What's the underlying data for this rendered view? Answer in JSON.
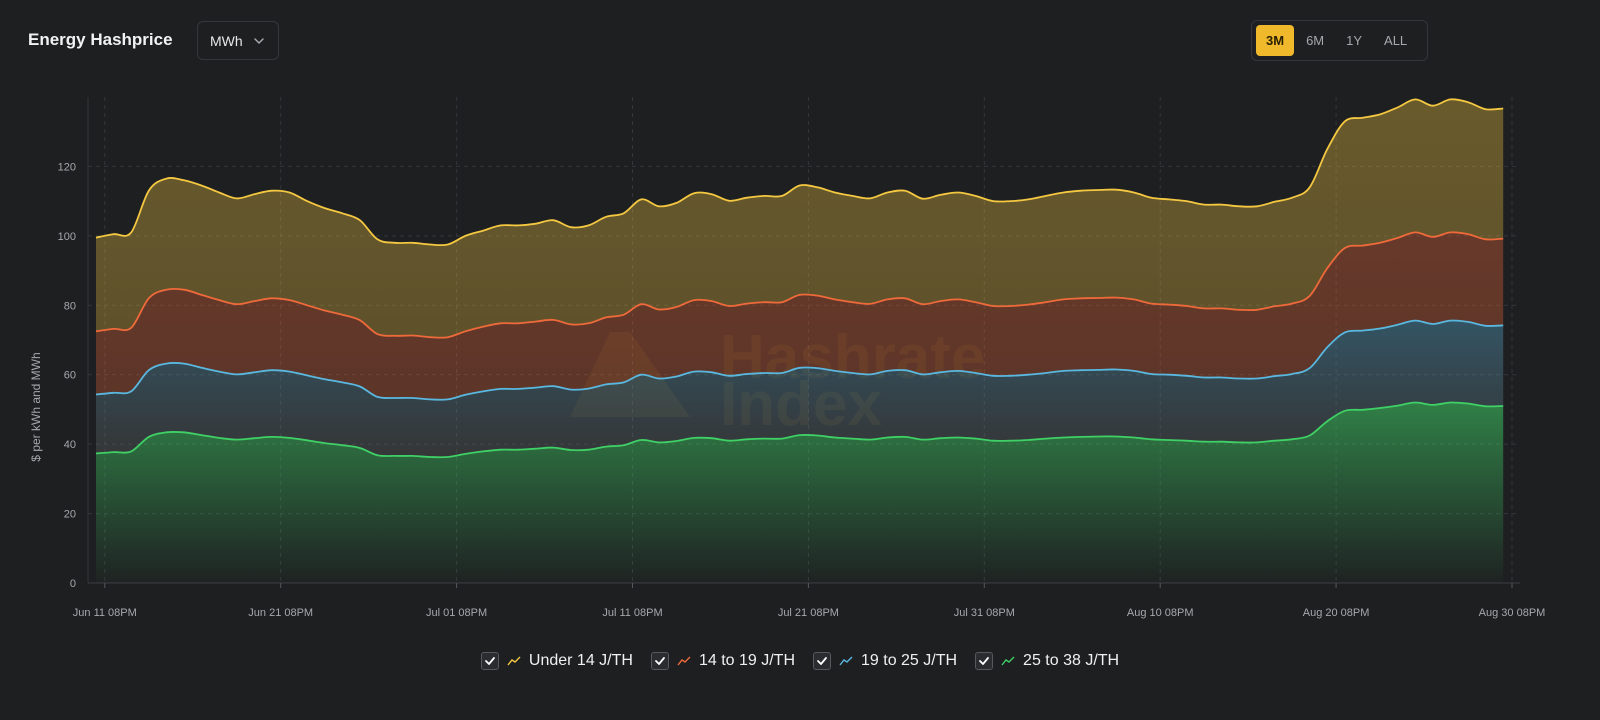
{
  "header": {
    "title": "Energy Hashprice",
    "unit_select": {
      "value": "MWh"
    },
    "ranges": [
      {
        "label": "3M",
        "active": true
      },
      {
        "label": "6M",
        "active": false
      },
      {
        "label": "1Y",
        "active": false
      },
      {
        "label": "ALL",
        "active": false
      }
    ]
  },
  "watermark": {
    "line1": "Hashrate",
    "line2": "Index"
  },
  "colors": {
    "background": "#1e1f21",
    "accent": "#f0b92b"
  },
  "chart_data": {
    "type": "area",
    "ylabel": "$ per kWh and MWh",
    "xlabel": "",
    "ylim": [
      0,
      140
    ],
    "yticks": [
      0,
      20,
      40,
      60,
      80,
      100,
      120
    ],
    "x_ticks": [
      "Jun 11 08PM",
      "Jun 21 08PM",
      "Jul 01 08PM",
      "Jul 11 08PM",
      "Jul 21 08PM",
      "Jul 31 08PM",
      "Aug 10 08PM",
      "Aug 20 08PM",
      "Aug 30 08PM"
    ],
    "x_start": "2024-06-11T08:00",
    "x_end": "2024-08-30T20:00",
    "x": [
      "2024-06-11T08:00",
      "2024-06-12T08:00",
      "2024-06-13T08:00",
      "2024-06-14T08:00",
      "2024-06-15T08:00",
      "2024-06-16T08:00",
      "2024-06-17T08:00",
      "2024-06-18T08:00",
      "2024-06-19T08:00",
      "2024-06-20T08:00",
      "2024-06-21T08:00",
      "2024-06-22T08:00",
      "2024-06-23T08:00",
      "2024-06-24T08:00",
      "2024-06-25T08:00",
      "2024-06-26T08:00",
      "2024-06-27T08:00",
      "2024-06-28T08:00",
      "2024-06-29T08:00",
      "2024-06-30T08:00",
      "2024-07-01T08:00",
      "2024-07-02T08:00",
      "2024-07-03T08:00",
      "2024-07-04T08:00",
      "2024-07-05T08:00",
      "2024-07-06T08:00",
      "2024-07-07T08:00",
      "2024-07-08T08:00",
      "2024-07-09T08:00",
      "2024-07-10T08:00",
      "2024-07-11T08:00",
      "2024-07-12T08:00",
      "2024-07-13T08:00",
      "2024-07-14T08:00",
      "2024-07-15T08:00",
      "2024-07-16T08:00",
      "2024-07-17T08:00",
      "2024-07-18T08:00",
      "2024-07-19T08:00",
      "2024-07-20T08:00",
      "2024-07-21T08:00",
      "2024-07-22T08:00",
      "2024-07-23T08:00",
      "2024-07-24T08:00",
      "2024-07-25T08:00",
      "2024-07-26T08:00",
      "2024-07-27T08:00",
      "2024-07-28T08:00",
      "2024-07-29T08:00",
      "2024-07-30T08:00",
      "2024-07-31T08:00",
      "2024-08-01T08:00",
      "2024-08-02T08:00",
      "2024-08-03T08:00",
      "2024-08-04T08:00",
      "2024-08-05T08:00",
      "2024-08-06T08:00",
      "2024-08-07T08:00",
      "2024-08-08T08:00",
      "2024-08-09T08:00",
      "2024-08-10T08:00",
      "2024-08-11T08:00",
      "2024-08-12T08:00",
      "2024-08-13T08:00",
      "2024-08-14T08:00",
      "2024-08-15T08:00",
      "2024-08-16T08:00",
      "2024-08-17T08:00",
      "2024-08-18T08:00",
      "2024-08-19T08:00",
      "2024-08-20T08:00",
      "2024-08-21T08:00",
      "2024-08-22T08:00",
      "2024-08-23T08:00",
      "2024-08-24T08:00",
      "2024-08-25T08:00",
      "2024-08-26T08:00",
      "2024-08-27T08:00",
      "2024-08-28T08:00",
      "2024-08-29T08:00",
      "2024-08-30T08:00"
    ],
    "series": [
      {
        "name": "Under 14 J/TH",
        "color": "#f5c842",
        "values": [
          99.5,
          100.5,
          101,
          113,
          116.5,
          116,
          114.5,
          112.5,
          110.8,
          112,
          113,
          112.5,
          110,
          108,
          106.5,
          104.5,
          99,
          98,
          98,
          97.5,
          97.5,
          100,
          101.5,
          103,
          103,
          103.5,
          104.5,
          102.5,
          103,
          105.5,
          106.5,
          110.5,
          108.5,
          109.5,
          112.3,
          112,
          110.1,
          111,
          111.5,
          111.5,
          114.5,
          114,
          112.5,
          111.5,
          110.8,
          112.5,
          113,
          110.7,
          111.8,
          112.5,
          111.5,
          110,
          110,
          110.5,
          111.5,
          112.5,
          113,
          113.2,
          113.3,
          112.5,
          111,
          110.5,
          110,
          109,
          109,
          108.5,
          108.5,
          109.8,
          111,
          114,
          125,
          133,
          134,
          135,
          137,
          139.3,
          137.5,
          139.3,
          138.5,
          136.5,
          136.7
        ]
      },
      {
        "name": "14 to 19 J/TH",
        "color": "#ef6a3a",
        "values": [
          72.5,
          73.2,
          73.5,
          82,
          84.5,
          84.5,
          83,
          81.5,
          80.3,
          81.2,
          82,
          81.5,
          80,
          78.5,
          77.3,
          75.7,
          71.7,
          71.2,
          71.3,
          70.8,
          70.8,
          72.5,
          73.8,
          74.8,
          74.8,
          75.3,
          75.8,
          74.5,
          74.8,
          76.5,
          77.3,
          80.3,
          78.8,
          79.5,
          81.5,
          81.2,
          79.8,
          80.5,
          80.9,
          80.9,
          83,
          82.8,
          81.7,
          80.9,
          80.4,
          81.7,
          82,
          80.3,
          81.2,
          81.7,
          80.9,
          79.8,
          79.8,
          80.2,
          80.9,
          81.7,
          82,
          82.1,
          82.2,
          81.7,
          80.5,
          80.2,
          79.8,
          79.1,
          79.1,
          78.7,
          78.7,
          79.7,
          80.5,
          82.7,
          90.7,
          96.5,
          97.2,
          98,
          99.4,
          101,
          99.7,
          101,
          100.5,
          99,
          99.2
        ]
      },
      {
        "name": "19 to 25 J/TH",
        "color": "#5ab8e0",
        "values": [
          54.3,
          54.8,
          55.2,
          61.3,
          63.2,
          63.2,
          62,
          60.9,
          60.1,
          60.7,
          61.3,
          60.9,
          59.8,
          58.7,
          57.8,
          56.6,
          53.6,
          53.3,
          53.3,
          52.9,
          52.9,
          54.2,
          55.2,
          55.9,
          55.9,
          56.3,
          56.7,
          55.7,
          56,
          57.2,
          57.8,
          60,
          58.9,
          59.5,
          60.9,
          60.7,
          59.7,
          60.2,
          60.5,
          60.5,
          62,
          61.9,
          61.1,
          60.5,
          60.1,
          61.1,
          61.3,
          60.1,
          60.7,
          61.1,
          60.5,
          59.7,
          59.7,
          60,
          60.5,
          61.1,
          61.3,
          61.4,
          61.5,
          61.1,
          60.2,
          60,
          59.7,
          59.2,
          59.2,
          58.9,
          58.9,
          59.6,
          60.2,
          61.9,
          67.9,
          72.2,
          72.7,
          73.3,
          74.4,
          75.6,
          74.6,
          75.6,
          75.2,
          74.1,
          74.2
        ]
      },
      {
        "name": "25 to 38 J/TH",
        "color": "#3fd066",
        "values": [
          37.3,
          37.7,
          37.9,
          42.1,
          43.4,
          43.4,
          42.6,
          41.8,
          41.3,
          41.7,
          42.1,
          41.8,
          41.1,
          40.3,
          39.7,
          38.9,
          36.8,
          36.6,
          36.6,
          36.3,
          36.3,
          37.2,
          37.9,
          38.4,
          38.4,
          38.7,
          39,
          38.3,
          38.4,
          39.3,
          39.7,
          41.2,
          40.5,
          40.9,
          41.8,
          41.7,
          41,
          41.4,
          41.6,
          41.6,
          42.6,
          42.5,
          41.9,
          41.6,
          41.3,
          41.9,
          42.1,
          41.3,
          41.7,
          41.9,
          41.6,
          41,
          41,
          41.2,
          41.6,
          41.9,
          42.1,
          42.2,
          42.2,
          41.9,
          41.4,
          41.2,
          41,
          40.7,
          40.7,
          40.5,
          40.5,
          41,
          41.4,
          42.5,
          46.6,
          49.6,
          49.9,
          50.4,
          51.1,
          52,
          51.3,
          52,
          51.7,
          50.9,
          51
        ]
      }
    ]
  }
}
